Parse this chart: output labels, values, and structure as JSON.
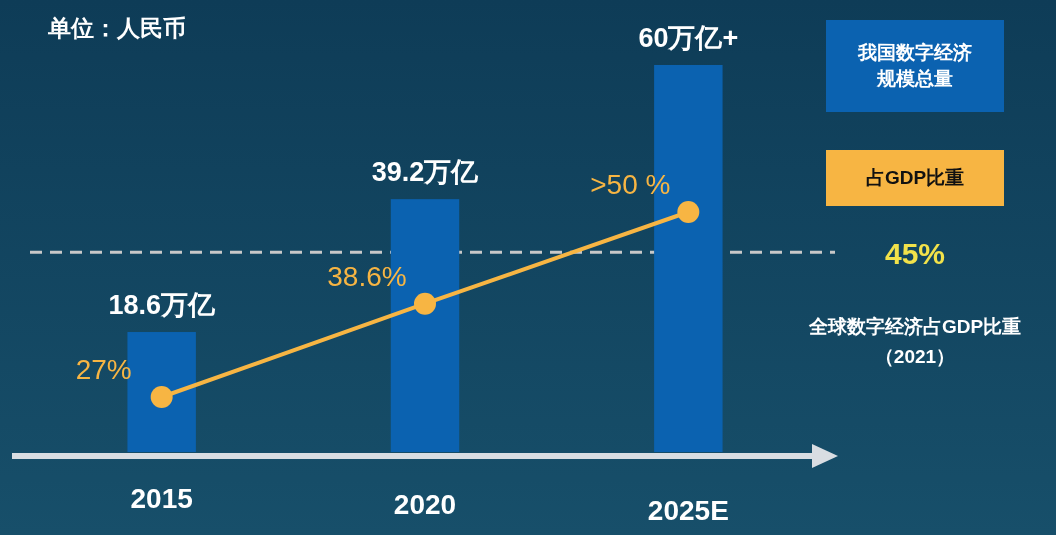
{
  "chart_data": {
    "type": "bar",
    "categories": [
      "2015",
      "2020",
      "2025E"
    ],
    "series": [
      {
        "name": "我国数字经济规模总量",
        "color": "#0b62b0",
        "values": [
          18.6,
          39.2,
          60
        ],
        "value_labels": [
          "18.6万亿",
          "39.2万亿",
          "60万亿+"
        ]
      },
      {
        "name": "占GDP比重",
        "type": "line",
        "axis": "y2",
        "color": "#f7b543",
        "values": [
          27,
          38.6,
          50
        ],
        "value_labels": [
          "27%",
          "38.6%",
          ">50 %"
        ],
        "marker": "circle"
      }
    ],
    "legend": "right",
    "ref_lines": [
      {
        "axis": "y2",
        "value": 45,
        "label": "45%",
        "color": "#c8c8c8",
        "line_style": "dashed"
      }
    ],
    "annotations": [
      "单位：人民币",
      "全球数字经济占GDP比重",
      "（2021）"
    ]
  }
}
